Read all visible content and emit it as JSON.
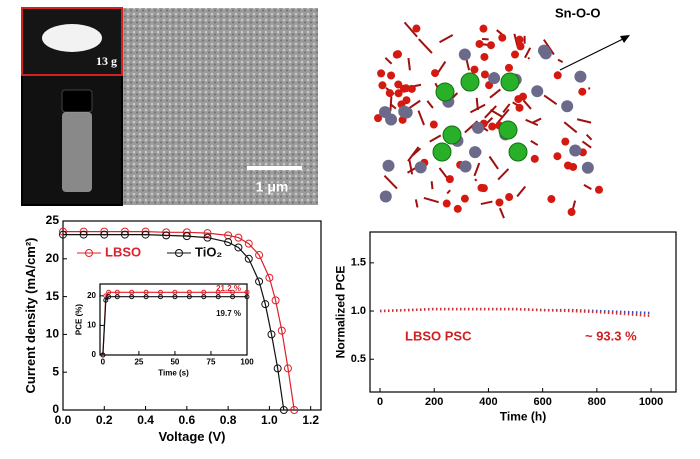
{
  "panels": {
    "powder_label": "13 g",
    "scale_bar": "1 μm",
    "structure_label": "Sn-O-O"
  },
  "chart_data": [
    {
      "type": "line",
      "xlabel": "Voltage (V)",
      "ylabel": "Current density (mA/cm²)",
      "xlim": [
        0,
        1.25
      ],
      "xticks": [
        {
          "value": 0,
          "label": "0.0"
        },
        0.2,
        0.4,
        0.6,
        0.8,
        {
          "value": 1,
          "label": "1.0"
        },
        1.2
      ],
      "ylim": [
        0,
        25
      ],
      "yticks": [
        0,
        5,
        10,
        15,
        20,
        25
      ],
      "marker": "open-circle",
      "legend": "top-left",
      "series": [
        {
          "name": "LBSO",
          "color": "#e0202a",
          "x": [
            0,
            0.1,
            0.2,
            0.3,
            0.4,
            0.5,
            0.6,
            0.7,
            0.8,
            0.85,
            0.9,
            0.95,
            1.0,
            1.03,
            1.06,
            1.09,
            1.12
          ],
          "values": [
            23.6,
            23.6,
            23.6,
            23.6,
            23.6,
            23.5,
            23.5,
            23.4,
            23.1,
            22.8,
            22.0,
            20.5,
            17.5,
            14.5,
            10.5,
            5.5,
            0
          ]
        },
        {
          "name": "TiO₂",
          "color": "#111111",
          "x": [
            0,
            0.1,
            0.2,
            0.3,
            0.4,
            0.5,
            0.6,
            0.7,
            0.8,
            0.85,
            0.9,
            0.95,
            0.98,
            1.01,
            1.04,
            1.07
          ],
          "values": [
            23.2,
            23.2,
            23.2,
            23.2,
            23.2,
            23.1,
            23.0,
            22.8,
            22.2,
            21.5,
            20.0,
            17.0,
            14.0,
            10.0,
            5.5,
            0
          ]
        }
      ]
    },
    {
      "type": "line",
      "xlabel": "Time (s)",
      "ylabel": "PCE (%)",
      "xlim": [
        -2,
        100
      ],
      "xticks": [
        0,
        25,
        50,
        75,
        100
      ],
      "ylim": [
        0,
        24
      ],
      "yticks": [
        0,
        10,
        20
      ],
      "marker": "open-circle",
      "annotations": [
        "21.2 %",
        "19.7 %"
      ],
      "series": [
        {
          "color": "#e0202a",
          "x": [
            0,
            2,
            4,
            10,
            20,
            30,
            40,
            50,
            60,
            70,
            80,
            90,
            100
          ],
          "values": [
            0,
            20,
            21.2,
            21.2,
            21.2,
            21.2,
            21.2,
            21.2,
            21.2,
            21.2,
            21.2,
            21.2,
            21.2
          ]
        },
        {
          "color": "#111111",
          "x": [
            0,
            2,
            4,
            10,
            20,
            30,
            40,
            50,
            60,
            70,
            80,
            90,
            100
          ],
          "values": [
            0,
            18.5,
            19.7,
            19.7,
            19.7,
            19.7,
            19.7,
            19.7,
            19.7,
            19.7,
            19.7,
            19.7,
            19.7
          ]
        }
      ]
    },
    {
      "type": "line",
      "xlabel": "Time (h)",
      "ylabel": "Normalized PCE",
      "xlim": [
        -37,
        1092
      ],
      "xticks": [
        0,
        200,
        400,
        600,
        800,
        1000
      ],
      "ylim": [
        0.16,
        1.82
      ],
      "yticks": [
        {
          "value": 0.5,
          "label": "0.5"
        },
        {
          "value": 1,
          "label": "1.0"
        },
        {
          "value": 1.5,
          "label": "1.5"
        }
      ],
      "line_style": "dotted",
      "annotations": [
        "LBSO PSC",
        "~ 93.3 %"
      ],
      "series": [
        {
          "color": "#3050c0",
          "x": [
            0,
            100,
            200,
            300,
            400,
            500,
            600,
            700,
            800,
            900,
            1000
          ],
          "values": [
            1.0,
            1.01,
            1.02,
            1.02,
            1.02,
            1.02,
            1.01,
            1.01,
            1.0,
            0.99,
            0.98
          ]
        },
        {
          "color": "#d03030",
          "x": [
            0,
            100,
            200,
            300,
            400,
            500,
            600,
            700,
            800,
            900,
            1000
          ],
          "values": [
            1.0,
            1.01,
            1.02,
            1.02,
            1.02,
            1.02,
            1.01,
            1.0,
            0.99,
            0.97,
            0.95
          ]
        }
      ]
    }
  ]
}
